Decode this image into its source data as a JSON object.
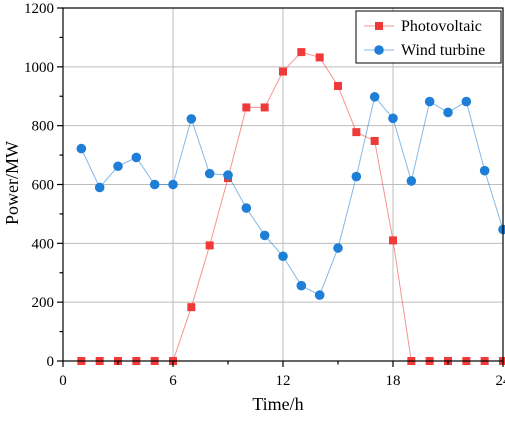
{
  "chart_data": {
    "type": "line",
    "title": "",
    "xlabel": "Time/h",
    "ylabel": "Power/MW",
    "xlim": [
      0,
      24
    ],
    "ylim": [
      0,
      1200
    ],
    "xticks": [
      0,
      6,
      12,
      18,
      24
    ],
    "yticks": [
      0,
      200,
      400,
      600,
      800,
      1000,
      1200
    ],
    "grid": true,
    "legend_position": "top-right",
    "series": [
      {
        "name": "Photovoltaic",
        "color": "#f03a3a",
        "marker": "square",
        "x": [
          1,
          2,
          3,
          4,
          5,
          6,
          7,
          8,
          9,
          10,
          11,
          12,
          13,
          14,
          15,
          16,
          17,
          18,
          19,
          20,
          21,
          22,
          23,
          24
        ],
        "values": [
          0,
          0,
          0,
          0,
          0,
          0,
          183,
          393,
          622,
          862,
          862,
          984,
          1050,
          1032,
          935,
          778,
          748,
          410,
          0,
          0,
          0,
          0,
          0,
          0
        ]
      },
      {
        "name": "Wind turbine",
        "color": "#1f7fd6",
        "marker": "circle",
        "x": [
          1,
          2,
          3,
          4,
          5,
          6,
          7,
          8,
          9,
          10,
          11,
          12,
          13,
          14,
          15,
          16,
          17,
          18,
          19,
          20,
          21,
          22,
          23,
          24
        ],
        "values": [
          722,
          590,
          662,
          692,
          600,
          600,
          823,
          637,
          632,
          520,
          427,
          356,
          256,
          224,
          384,
          627,
          898,
          825,
          612,
          882,
          845,
          882,
          647,
          447
        ]
      }
    ]
  }
}
